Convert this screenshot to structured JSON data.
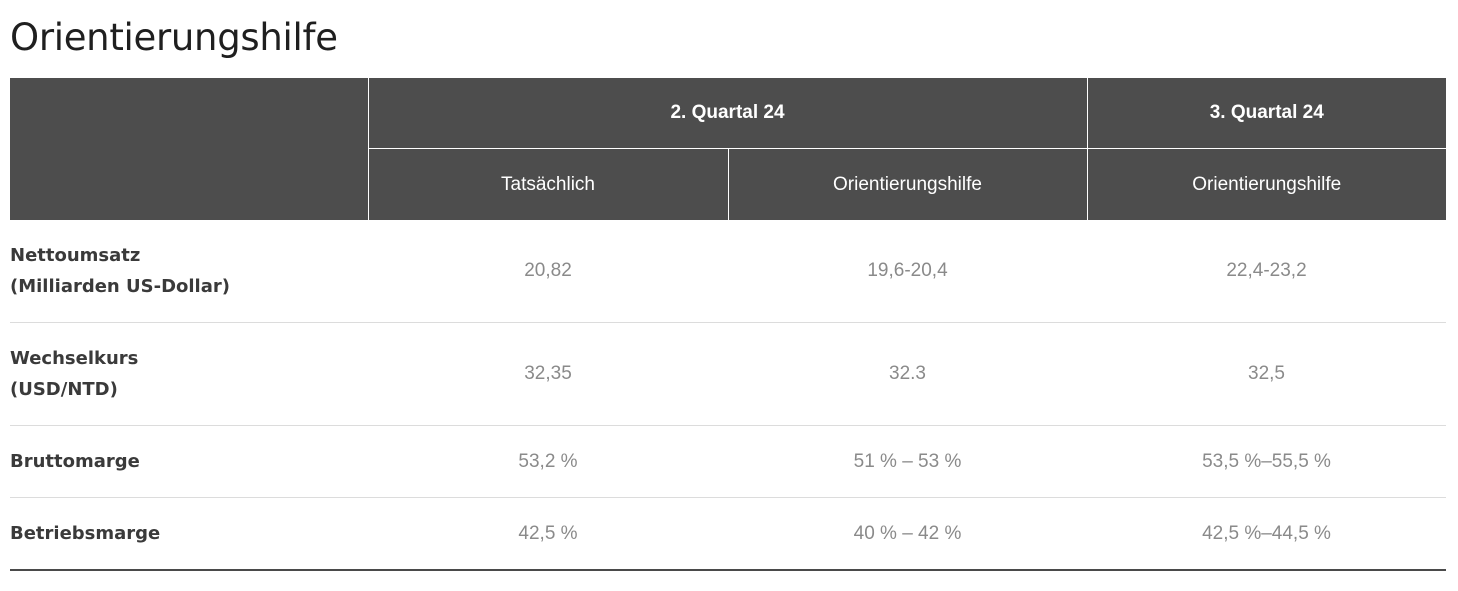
{
  "page": {
    "title": "Orientierungshilfe"
  },
  "table": {
    "header": {
      "corner": "",
      "groups": [
        {
          "label": "2. Quartal 24"
        },
        {
          "label": "3. Quartal 24"
        }
      ],
      "subheaders": [
        "Tatsächlich",
        "Orientierungshilfe",
        "Orientierungshilfe"
      ]
    },
    "rows": [
      {
        "label_line1": "Nettoumsatz",
        "label_line2": "(Milliarden US-Dollar)",
        "values": [
          "20,82",
          "19,6-20,4",
          "22,4-23,2"
        ]
      },
      {
        "label_line1": "Wechselkurs",
        "label_line2": "(USD/NTD)",
        "values": [
          "32,35",
          "32.3",
          "32,5"
        ]
      },
      {
        "label_line1": "Bruttomarge",
        "label_line2": "",
        "values": [
          "53,2 %",
          "51 % – 53 %",
          "53,5 %–55,5 %"
        ]
      },
      {
        "label_line1": "Betriebsmarge",
        "label_line2": "",
        "values": [
          "42,5 %",
          "40 % – 42 %",
          "42,5 %–44,5 %"
        ]
      }
    ]
  },
  "colors": {
    "header_background": "#4d4d4d",
    "header_text": "#ffffff",
    "label_text": "#3a3a3a",
    "value_text": "#8a8a8a",
    "row_divider": "#dcdcdc"
  }
}
